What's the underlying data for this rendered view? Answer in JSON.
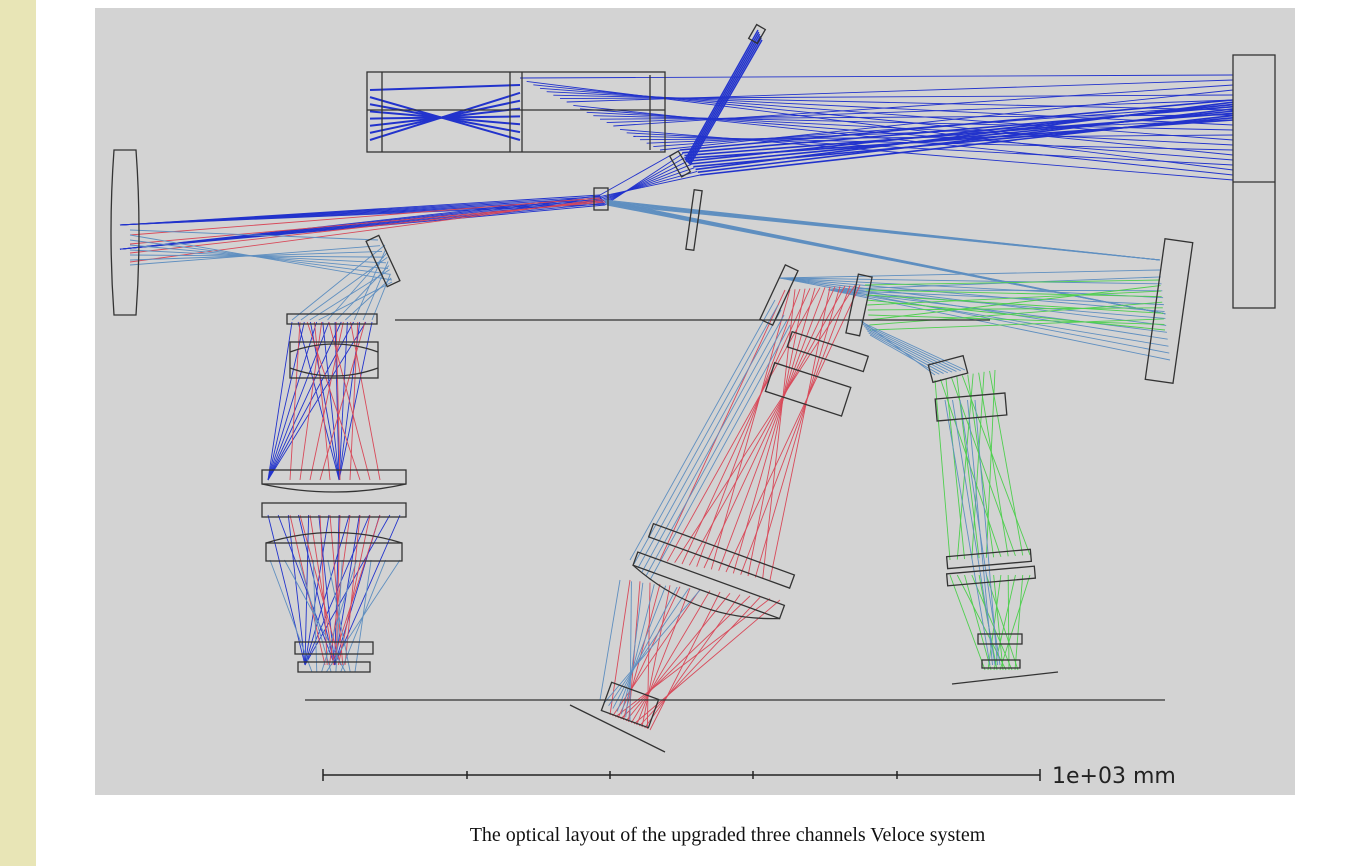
{
  "figure": {
    "scale_label": "1e+03 mm",
    "caption": "The optical layout of the upgraded three channels Veloce system"
  }
}
